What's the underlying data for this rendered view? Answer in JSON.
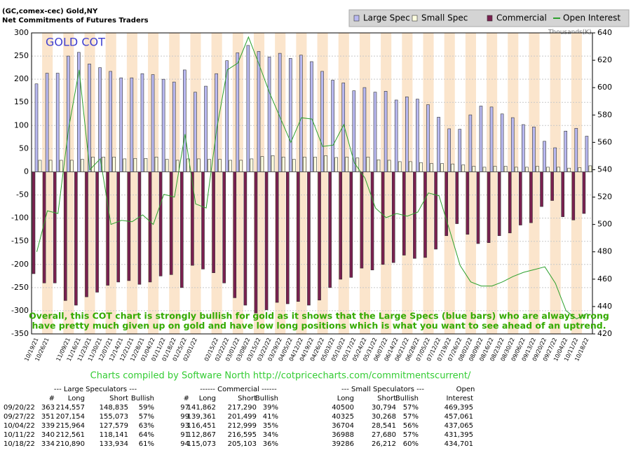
{
  "chart_data": {
    "type": "bar",
    "title": "(GC,comex-cec) Gold,NY",
    "subtitle": "Net Commitments of Futures Traders",
    "inset_title": "GOLD COT",
    "y2_label": "Thousands(K)",
    "annotation": [
      "Overall, this COT chart is strongly bullish for gold as it shows that the Large Specs (blue bars) who are always wrong",
      "have pretty much given up on gold and have low long positions which is what you want to see ahead of an uptrend."
    ],
    "categories": [
      "10/19/21",
      "10/26/21",
      null,
      "11/09/21",
      "11/16/21",
      "11/23/21",
      "11/30/21",
      "12/07/21",
      "12/14/21",
      "12/21/21",
      "12/28/21",
      "01/04/22",
      "01/11/22",
      "01/18/22",
      "01/25/22",
      "02/01/22",
      null,
      "02/15/22",
      "02/22/22",
      "03/01/22",
      "03/08/22",
      "03/15/22",
      "03/22/22",
      "03/29/22",
      "04/05/22",
      "04/12/22",
      "04/19/22",
      "04/26/22",
      "05/03/22",
      "05/10/22",
      "05/17/22",
      "05/24/22",
      "05/31/22",
      "06/07/22",
      "06/14/22",
      "06/21/22",
      "06/28/22",
      "07/05/22",
      "07/12/22",
      "07/19/22",
      "07/26/22",
      "08/02/22",
      "08/09/22",
      "08/16/22",
      "08/23/22",
      "08/30/22",
      "09/06/22",
      "09/13/22",
      "09/20/22",
      "09/27/22",
      "10/04/22",
      "10/11/22",
      "10/18/22"
    ],
    "series": [
      {
        "name": "Large Spec",
        "color": "#b8b8f0",
        "values": [
          190,
          213,
          213,
          250,
          258,
          233,
          225,
          217,
          203,
          203,
          212,
          210,
          200,
          194,
          220,
          172,
          185,
          212,
          240,
          257,
          273,
          260,
          248,
          256,
          245,
          252,
          238,
          217,
          198,
          192,
          175,
          182,
          172,
          174,
          155,
          162,
          157,
          145,
          118,
          93,
          92,
          123,
          142,
          140,
          125,
          117,
          102,
          97,
          66,
          52,
          88,
          94,
          77
        ]
      },
      {
        "name": "Small Spec",
        "color": "#ffffe0",
        "values": [
          25,
          25,
          25,
          25,
          27,
          32,
          32,
          32,
          28,
          29,
          29,
          32,
          27,
          25,
          28,
          28,
          27,
          27,
          25,
          25,
          28,
          33,
          35,
          32,
          27,
          32,
          32,
          35,
          31,
          32,
          30,
          32,
          26,
          25,
          22,
          22,
          20,
          18,
          18,
          17,
          15,
          12,
          10,
          12,
          12,
          10,
          10,
          12,
          10,
          10,
          8,
          9,
          13
        ]
      },
      {
        "name": "Commercial",
        "color": "#7a2050",
        "values": [
          -220,
          -240,
          -240,
          -278,
          -288,
          -270,
          -260,
          -245,
          -238,
          -235,
          -243,
          -238,
          -225,
          -222,
          -250,
          -202,
          -210,
          -218,
          -240,
          -272,
          -288,
          -305,
          -298,
          -282,
          -285,
          -280,
          -288,
          -277,
          -250,
          -232,
          -228,
          -208,
          -212,
          -200,
          -196,
          -180,
          -187,
          -185,
          -167,
          -138,
          -112,
          -135,
          -155,
          -153,
          -138,
          -132,
          -115,
          -110,
          -75,
          -62,
          -97,
          -104,
          -90
        ]
      },
      {
        "name": "Open Interest",
        "color": "#2ca02c",
        "type": "line",
        "axis": "y2",
        "values": [
          480,
          510,
          508,
          570,
          613,
          540,
          548,
          500,
          503,
          502,
          507,
          500,
          522,
          520,
          566,
          515,
          512,
          570,
          613,
          618,
          637,
          617,
          596,
          578,
          560,
          578,
          577,
          557,
          558,
          573,
          545,
          534,
          512,
          505,
          508,
          506,
          509,
          523,
          521,
          496,
          470,
          458,
          455,
          455,
          458,
          462,
          465,
          467,
          469,
          457,
          437,
          431,
          435
        ]
      }
    ],
    "ylim": [
      -350,
      300
    ],
    "yticks": [
      -350,
      -300,
      -250,
      -200,
      -150,
      -100,
      -50,
      0,
      50,
      100,
      150,
      200,
      250,
      300
    ],
    "y2lim": [
      420,
      640
    ],
    "y2ticks": [
      420,
      440,
      460,
      480,
      500,
      520,
      540,
      560,
      580,
      600,
      620,
      640
    ],
    "grid": true,
    "legend": "top-right"
  },
  "footer": "Charts compiled by Software North  http://cotpricecharts.com/commitmentscurrent/",
  "table": {
    "group_headers": [
      "--- Large Speculators ---",
      "------ Commercial ------",
      "--- Small Speculators ---",
      "Open"
    ],
    "columns": [
      "#",
      "Long",
      "Short",
      "Bullish",
      "#",
      "Long",
      "Short",
      "Bullish",
      "Long",
      "Short",
      "Bullish",
      "Interest"
    ],
    "rows": [
      [
        "09/20/22",
        "363",
        "214,557",
        "148,835",
        "59%",
        "97",
        "141,862",
        "217,290",
        "39%",
        "40500",
        "30,794",
        "57%",
        "469,395"
      ],
      [
        "09/27/22",
        "351",
        "207,154",
        "155,073",
        "57%",
        "99",
        "139,361",
        "201,499",
        "41%",
        "40325",
        "30,268",
        "57%",
        "457,061"
      ],
      [
        "10/04/22",
        "339",
        "215,964",
        "127,579",
        "63%",
        "93",
        "116,451",
        "212,999",
        "35%",
        "36704",
        "28,541",
        "56%",
        "437,065"
      ],
      [
        "10/11/22",
        "340",
        "212,561",
        "118,141",
        "64%",
        "91",
        "112,867",
        "216,595",
        "34%",
        "36988",
        "27,680",
        "57%",
        "431,395"
      ],
      [
        "10/18/22",
        "334",
        "210,890",
        "133,934",
        "61%",
        "94",
        "115,073",
        "205,103",
        "36%",
        "39286",
        "26,212",
        "60%",
        "434,701"
      ]
    ]
  }
}
